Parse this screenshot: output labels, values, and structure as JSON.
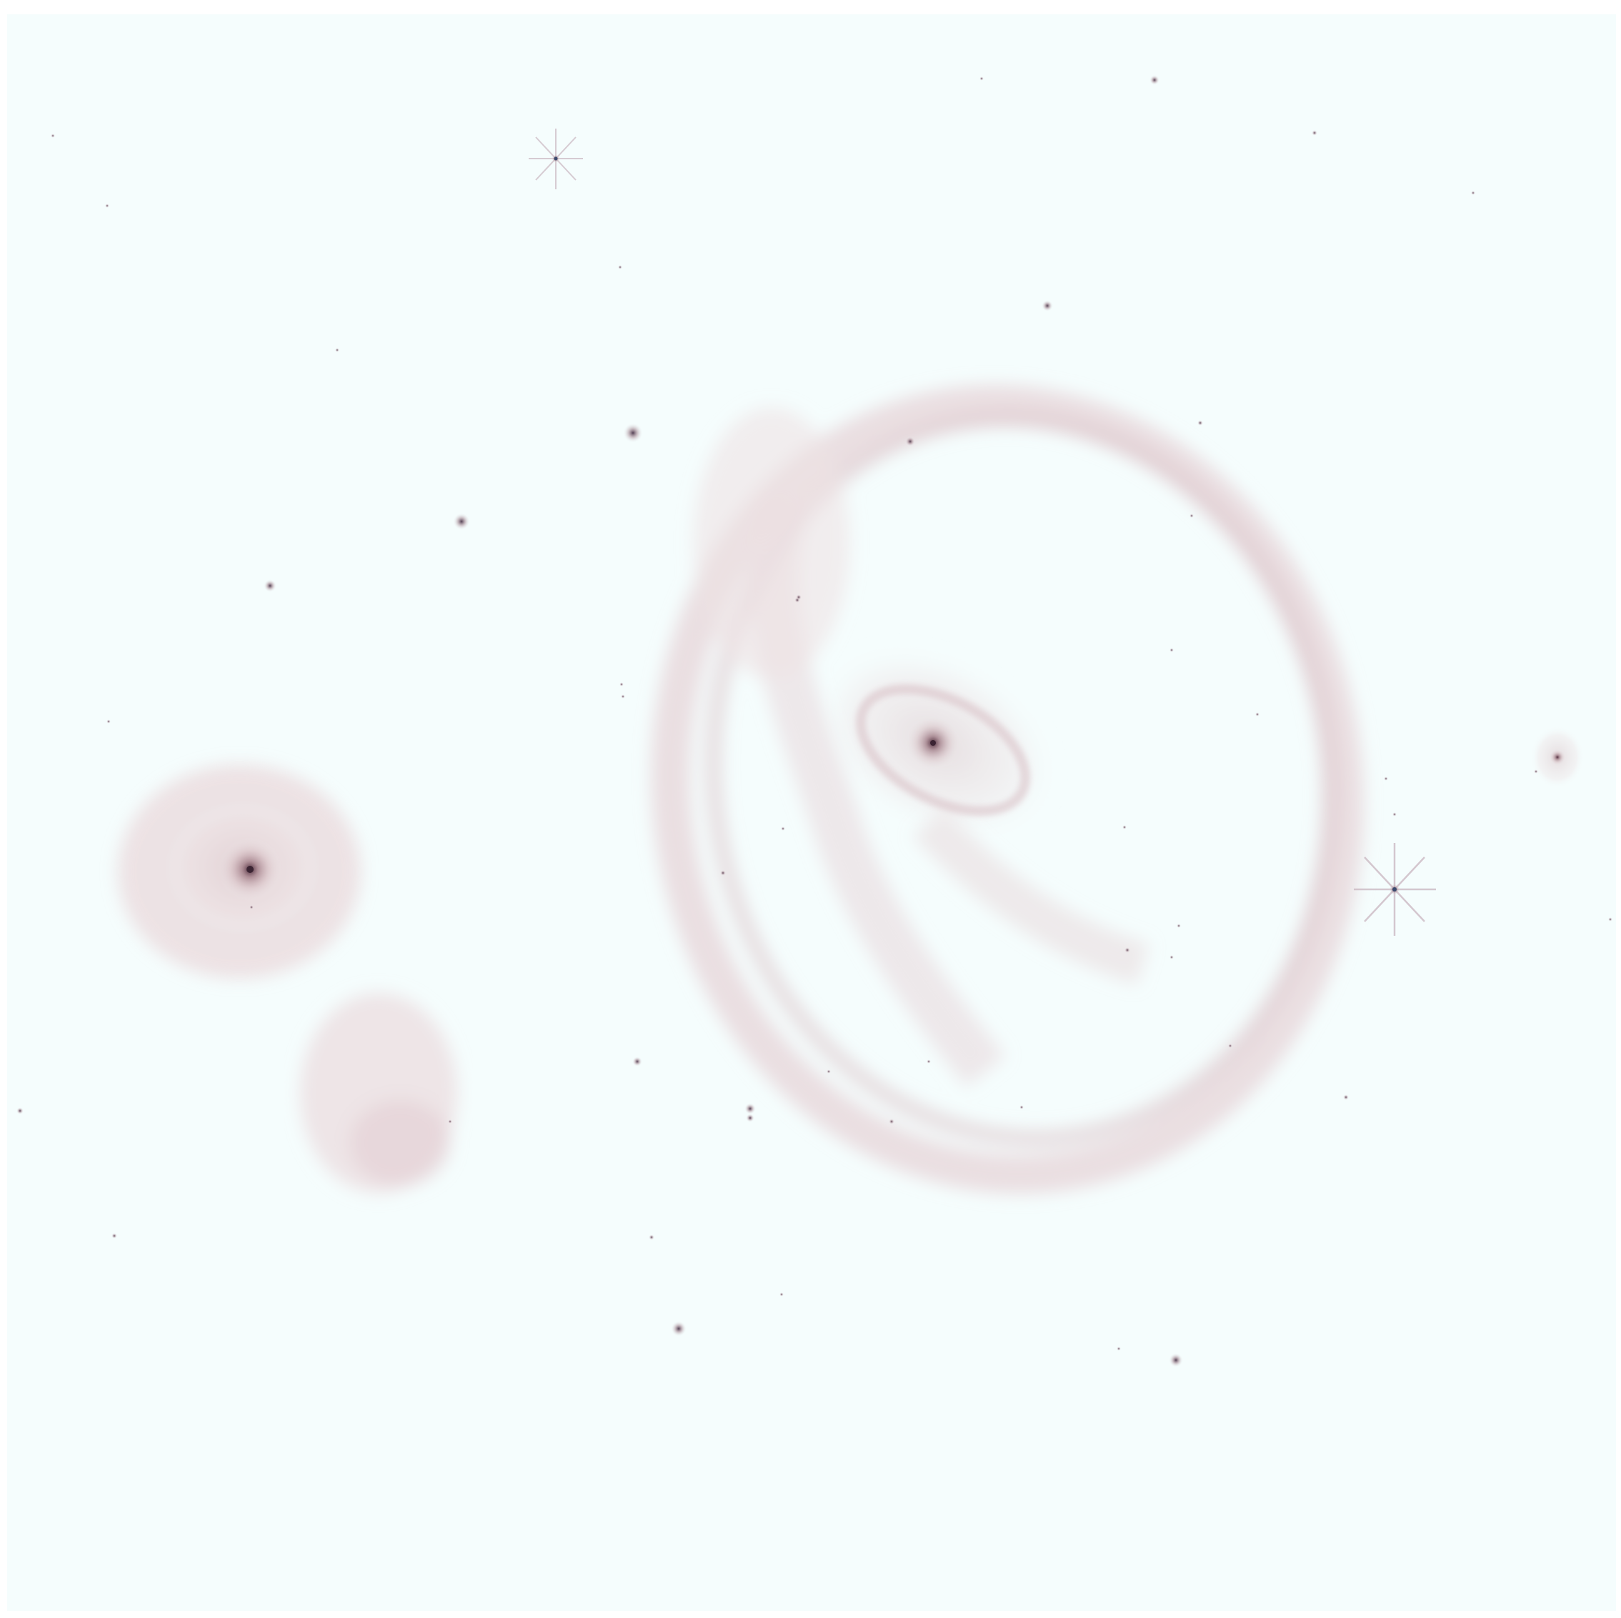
{
  "image": {
    "kind": "inverted astronomical deep-field image",
    "palette": {
      "background": "#f5fdfd",
      "glow": "#b08a8e",
      "core": "#4a2a3a",
      "star": "#3b4a6e",
      "border": "#ffffff"
    }
  },
  "objects": [
    {
      "name": "ring-galaxy",
      "type": "ring"
    },
    {
      "name": "central-spiral-galaxy",
      "type": "spiral"
    },
    {
      "name": "left-elliptical-galaxy",
      "type": "elliptical"
    },
    {
      "name": "lower-left-irregular-galaxy",
      "type": "irregular"
    },
    {
      "name": "right-small-spiral-galaxy",
      "type": "spiral"
    },
    {
      "name": "diffraction-spike-star-top",
      "type": "star"
    },
    {
      "name": "diffraction-spike-star-right",
      "type": "star"
    }
  ]
}
